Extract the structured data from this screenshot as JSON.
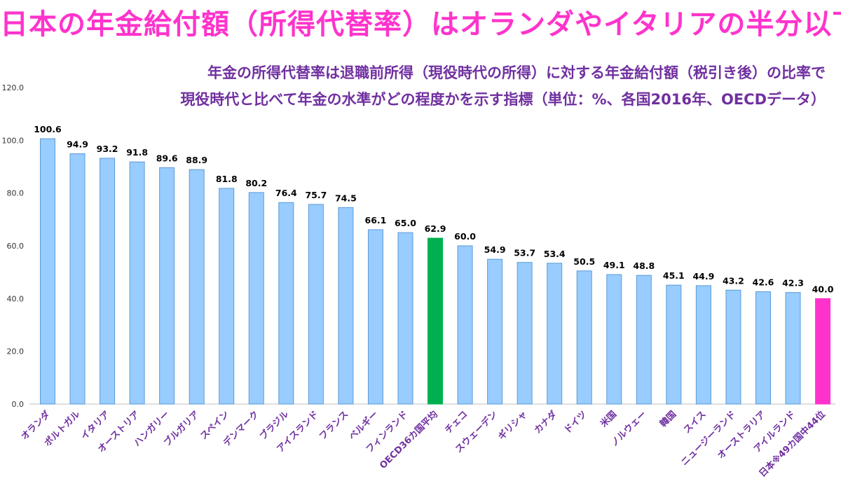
{
  "title": "日本の年金給付額（所得代替率）はオランダやイタリアの半分以下",
  "subtitle_line1": "年金の所得代替率は退職前所得（現役時代の所得）に対する年金給付額（税引き後）の比率で",
  "subtitle_line2": "現役時代と比べて年金の水準がどの程度かを示す指標（単位：%、各国2016年、OECDデータ）",
  "colors": {
    "default_bar": "#99ccff",
    "average_bar": "#00b050",
    "japan_bar": "#ff33cc",
    "bar_border": "#5b9bd5",
    "title": "#ff33cc",
    "subtitle": "#7030a0",
    "category_label": "#7030a0"
  },
  "chart_data": {
    "type": "bar",
    "categories": [
      "オランダ",
      "ポルトガル",
      "イタリア",
      "オーストリア",
      "ハンガリー",
      "ブルガリア",
      "スペイン",
      "デンマーク",
      "ブラジル",
      "アイスランド",
      "フランス",
      "ベルギー",
      "フィンランド",
      "OECD36カ国平均",
      "チェコ",
      "スウェーデン",
      "ギリシャ",
      "カナダ",
      "ドイツ",
      "米国",
      "ノルウェー",
      "韓国",
      "スイス",
      "ニュージーランド",
      "オーストラリア",
      "アイルランド",
      "日本※49カ国中44位"
    ],
    "values": [
      100.6,
      94.9,
      93.2,
      91.8,
      89.6,
      88.9,
      81.8,
      80.2,
      76.4,
      75.7,
      74.5,
      66.1,
      65.0,
      62.9,
      60.0,
      54.9,
      53.7,
      53.4,
      50.5,
      49.1,
      48.8,
      45.1,
      44.9,
      43.2,
      42.6,
      42.3,
      40.0
    ],
    "value_labels": [
      "100.6",
      "94.9",
      "93.2",
      "91.8",
      "89.6",
      "88.9",
      "81.8",
      "80.2",
      "76.4",
      "75.7",
      "74.5",
      "66.1",
      "65.0",
      "62.9",
      "60.0",
      "54.9",
      "53.7",
      "53.4",
      "50.5",
      "49.1",
      "48.8",
      "45.1",
      "44.9",
      "43.2",
      "42.6",
      "42.3",
      "40.0"
    ],
    "highlight": {
      "OECD36カ国平均": "average",
      "日本※49カ国中44位": "japan"
    },
    "ylim": [
      0,
      120
    ],
    "yticks": [
      0,
      20,
      40,
      60,
      80,
      100,
      120
    ],
    "ytick_labels": [
      "0.0",
      "20.0",
      "40.0",
      "60.0",
      "80.0",
      "100.0",
      "120.0"
    ],
    "grid": false,
    "legend": "none"
  }
}
